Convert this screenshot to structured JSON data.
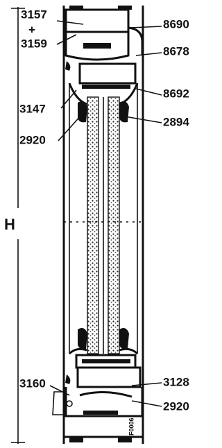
{
  "labels": {
    "top_left_1": "3157",
    "top_left_plus": "+",
    "top_left_2": "3159",
    "top_right_1": "8690",
    "top_right_2": "8678",
    "mid_left_1": "3147",
    "mid_right_1": "8692",
    "mid_right_2": "2894",
    "mid_left_2": "2920",
    "height": "H",
    "bottom_left": "3160",
    "bottom_right_1": "3128",
    "bottom_right_2": "2920",
    "code": "F0006"
  }
}
